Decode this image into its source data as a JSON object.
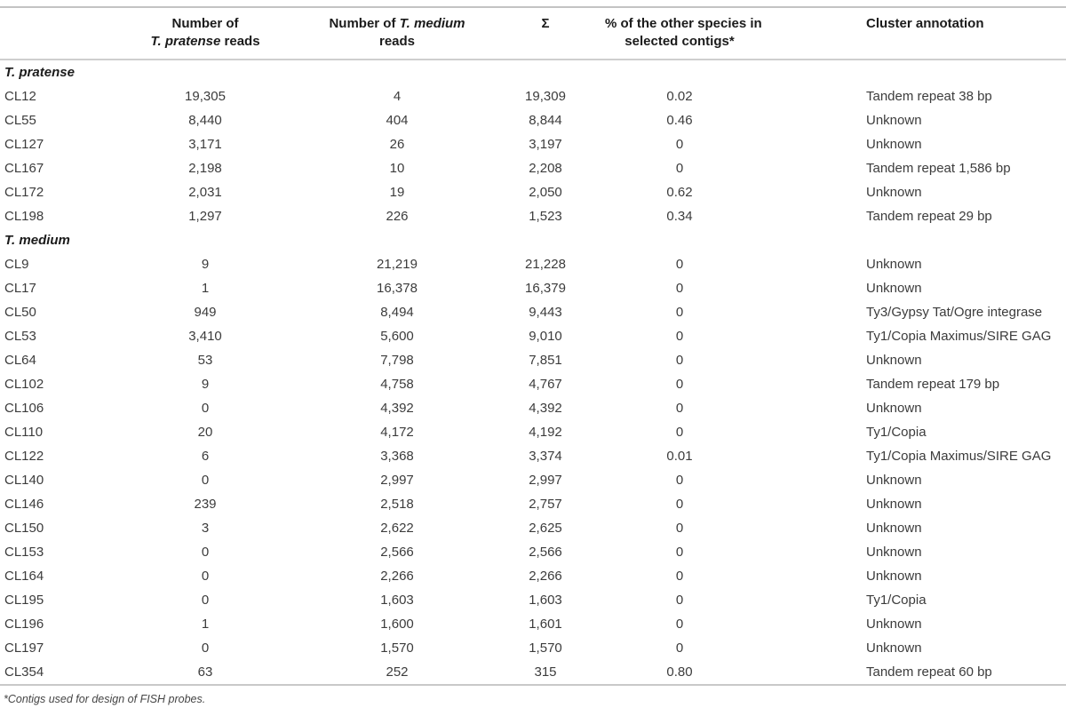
{
  "table": {
    "header": {
      "col_cluster": "",
      "col_pratense": {
        "line1": "Number of",
        "line2_italic": "T. pratense",
        "line2_suffix": " reads"
      },
      "col_medium": {
        "line1_prefix": "Number of ",
        "line1_italic": "T. medium",
        "line2": "reads"
      },
      "col_sigma": "Σ",
      "col_pct": {
        "line1": "% of the other species in",
        "line2": "selected contigs*"
      },
      "col_annotation": "Cluster annotation"
    },
    "sections": [
      {
        "name": "T. pratense",
        "rows": [
          {
            "id": "CL12",
            "pratense": "19,305",
            "medium": "4",
            "sum": "19,309",
            "pct": "0.02",
            "annotation": "Tandem repeat 38 bp"
          },
          {
            "id": "CL55",
            "pratense": "8,440",
            "medium": "404",
            "sum": "8,844",
            "pct": "0.46",
            "annotation": "Unknown"
          },
          {
            "id": "CL127",
            "pratense": "3,171",
            "medium": "26",
            "sum": "3,197",
            "pct": "0",
            "annotation": "Unknown"
          },
          {
            "id": "CL167",
            "pratense": "2,198",
            "medium": "10",
            "sum": "2,208",
            "pct": "0",
            "annotation": "Tandem repeat 1,586 bp"
          },
          {
            "id": "CL172",
            "pratense": "2,031",
            "medium": "19",
            "sum": "2,050",
            "pct": "0.62",
            "annotation": "Unknown"
          },
          {
            "id": "CL198",
            "pratense": "1,297",
            "medium": "226",
            "sum": "1,523",
            "pct": "0.34",
            "annotation": "Tandem repeat 29 bp"
          }
        ]
      },
      {
        "name": "T. medium",
        "rows": [
          {
            "id": "CL9",
            "pratense": "9",
            "medium": "21,219",
            "sum": "21,228",
            "pct": "0",
            "annotation": "Unknown"
          },
          {
            "id": "CL17",
            "pratense": "1",
            "medium": "16,378",
            "sum": "16,379",
            "pct": "0",
            "annotation": "Unknown"
          },
          {
            "id": "CL50",
            "pratense": "949",
            "medium": "8,494",
            "sum": "9,443",
            "pct": "0",
            "annotation": "Ty3/Gypsy Tat/Ogre integrase"
          },
          {
            "id": "CL53",
            "pratense": "3,410",
            "medium": "5,600",
            "sum": "9,010",
            "pct": "0",
            "annotation": "Ty1/Copia Maximus/SIRE GAG"
          },
          {
            "id": "CL64",
            "pratense": "53",
            "medium": "7,798",
            "sum": "7,851",
            "pct": "0",
            "annotation": "Unknown"
          },
          {
            "id": "CL102",
            "pratense": "9",
            "medium": "4,758",
            "sum": "4,767",
            "pct": "0",
            "annotation": "Tandem repeat 179 bp"
          },
          {
            "id": "CL106",
            "pratense": "0",
            "medium": "4,392",
            "sum": "4,392",
            "pct": "0",
            "annotation": "Unknown"
          },
          {
            "id": "CL110",
            "pratense": "20",
            "medium": "4,172",
            "sum": "4,192",
            "pct": "0",
            "annotation": "Ty1/Copia"
          },
          {
            "id": "CL122",
            "pratense": "6",
            "medium": "3,368",
            "sum": "3,374",
            "pct": "0.01",
            "annotation": "Ty1/Copia Maximus/SIRE GAG"
          },
          {
            "id": "CL140",
            "pratense": "0",
            "medium": "2,997",
            "sum": "2,997",
            "pct": "0",
            "annotation": "Unknown"
          },
          {
            "id": "CL146",
            "pratense": "239",
            "medium": "2,518",
            "sum": "2,757",
            "pct": "0",
            "annotation": "Unknown"
          },
          {
            "id": "CL150",
            "pratense": "3",
            "medium": "2,622",
            "sum": "2,625",
            "pct": "0",
            "annotation": "Unknown"
          },
          {
            "id": "CL153",
            "pratense": "0",
            "medium": "2,566",
            "sum": "2,566",
            "pct": "0",
            "annotation": "Unknown"
          },
          {
            "id": "CL164",
            "pratense": "0",
            "medium": "2,266",
            "sum": "2,266",
            "pct": "0",
            "annotation": "Unknown"
          },
          {
            "id": "CL195",
            "pratense": "0",
            "medium": "1,603",
            "sum": "1,603",
            "pct": "0",
            "annotation": "Ty1/Copia"
          },
          {
            "id": "CL196",
            "pratense": "1",
            "medium": "1,600",
            "sum": "1,601",
            "pct": "0",
            "annotation": "Unknown"
          },
          {
            "id": "CL197",
            "pratense": "0",
            "medium": "1,570",
            "sum": "1,570",
            "pct": "0",
            "annotation": "Unknown"
          },
          {
            "id": "CL354",
            "pratense": "63",
            "medium": "252",
            "sum": "315",
            "pct": "0.80",
            "annotation": "Tandem repeat 60 bp"
          }
        ]
      }
    ],
    "footnote": "*Contigs used for design of FISH probes."
  }
}
